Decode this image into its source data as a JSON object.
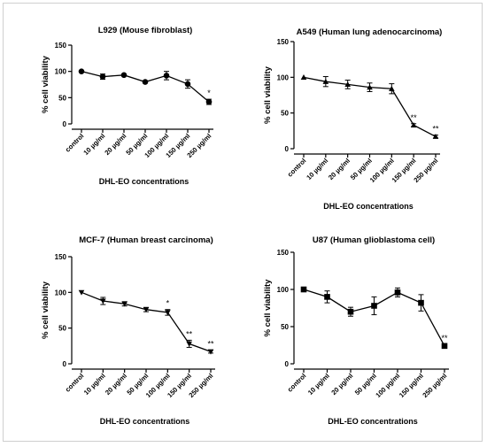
{
  "chart_data": [
    {
      "type": "line",
      "title": "L929 (Mouse fibroblast)",
      "xlabel": "DHL-EO concentrations",
      "ylabel": "% cell viability",
      "categories": [
        "control",
        "10 µg/ml",
        "20 µg/ml",
        "50 µg/ml",
        "100 µg/ml",
        "150 µg/ml",
        "250 µg/ml"
      ],
      "values": [
        100,
        90,
        93,
        80,
        92,
        76,
        42
      ],
      "errors": [
        0,
        5,
        2,
        2,
        8,
        8,
        5
      ],
      "annotations": [
        "",
        "",
        "",
        "",
        "",
        "",
        "*"
      ],
      "yticks": [
        0,
        50,
        100,
        150
      ],
      "ylim": [
        0,
        150
      ],
      "marker": "circle"
    },
    {
      "type": "line",
      "title": "A549 (Human lung adenocarcinoma)",
      "xlabel": "DHL-EO concentrations",
      "ylabel": "% cell viability",
      "categories": [
        "control",
        "10 µg/ml",
        "20 µg/ml",
        "50 µg/ml",
        "100 µg/ml",
        "150 µg/ml",
        "250 µg/ml"
      ],
      "values": [
        100,
        94,
        90,
        86,
        84,
        33,
        17
      ],
      "errors": [
        0,
        7,
        6,
        6,
        7,
        2,
        2
      ],
      "annotations": [
        "",
        "",
        "",
        "",
        "",
        "**",
        "**"
      ],
      "yticks": [
        0,
        50,
        100,
        150
      ],
      "ylim": [
        0,
        150
      ],
      "marker": "triangle-up"
    },
    {
      "type": "line",
      "title": "MCF-7 (Human breast carcinoma)",
      "xlabel": "DHL-EO concentrations",
      "ylabel": "% cell viability",
      "categories": [
        "control",
        "10 µg/ml",
        "20 µg/ml",
        "50 µg/ml",
        "100 µg/ml",
        "150 µg/ml",
        "250 µg/ml"
      ],
      "values": [
        100,
        88,
        84,
        76,
        72,
        28,
        17
      ],
      "errors": [
        0,
        5,
        3,
        3,
        4,
        5,
        2
      ],
      "annotations": [
        "",
        "",
        "",
        "",
        "*",
        "**",
        "**"
      ],
      "yticks": [
        0,
        50,
        100,
        150
      ],
      "ylim": [
        0,
        150
      ],
      "marker": "triangle-down"
    },
    {
      "type": "line",
      "title": "U87 (Human glioblastoma cell)",
      "xlabel": "DHL-EO concentrations",
      "ylabel": "% cell viability",
      "categories": [
        "control",
        "10 µg/ml",
        "20 µg/ml",
        "50 µg/ml",
        "100 µg/ml",
        "150 µg/ml",
        "250 µg/ml"
      ],
      "values": [
        100,
        90,
        70,
        78,
        96,
        82,
        24
      ],
      "errors": [
        0,
        8,
        6,
        12,
        6,
        11,
        2
      ],
      "annotations": [
        "",
        "",
        "",
        "",
        "",
        "",
        "**"
      ],
      "yticks": [
        0,
        50,
        100,
        150
      ],
      "ylim": [
        0,
        150
      ],
      "marker": "square"
    }
  ]
}
